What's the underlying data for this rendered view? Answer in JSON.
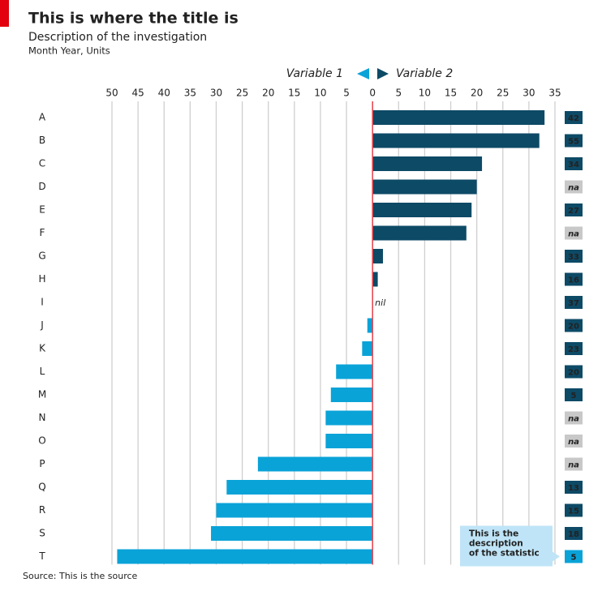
{
  "chart_data": {
    "type": "diverging-bar",
    "title": "This is where the title is",
    "subtitle": "Description of the investigation",
    "units": "Month Year, Units",
    "source": "Source: This is the source",
    "categories": [
      "A",
      "B",
      "C",
      "D",
      "E",
      "F",
      "G",
      "H",
      "I",
      "J",
      "K",
      "L",
      "M",
      "N",
      "O",
      "P",
      "Q",
      "R",
      "S",
      "T"
    ],
    "series": [
      {
        "name": "Variable 1",
        "color": "#0aa3d8",
        "values": [
          null,
          null,
          null,
          null,
          null,
          null,
          null,
          null,
          null,
          -1,
          -2,
          -7,
          -8,
          -9,
          -9,
          -22,
          -28,
          -30,
          -31,
          -49
        ]
      },
      {
        "name": "Variable 2",
        "color": "#0d4a66",
        "values": [
          33,
          32,
          21,
          20,
          19,
          18,
          2,
          1,
          0,
          null,
          null,
          null,
          null,
          null,
          null,
          null,
          null,
          null,
          null,
          null
        ],
        "value_labels": [
          null,
          null,
          null,
          null,
          null,
          null,
          null,
          null,
          "nil",
          null,
          null,
          null,
          null,
          null,
          null,
          null,
          null,
          null,
          null,
          null
        ]
      }
    ],
    "xlim": [
      -50,
      35
    ],
    "xticks": [
      {
        "value": -50,
        "label": "50"
      },
      {
        "value": -45,
        "label": "45"
      },
      {
        "value": -40,
        "label": "40"
      },
      {
        "value": -35,
        "label": "35"
      },
      {
        "value": -30,
        "label": "30"
      },
      {
        "value": -25,
        "label": "25"
      },
      {
        "value": -20,
        "label": "20"
      },
      {
        "value": -15,
        "label": "15"
      },
      {
        "value": -10,
        "label": "10"
      },
      {
        "value": -5,
        "label": "5"
      },
      0,
      5,
      10,
      15,
      20,
      25,
      30,
      35
    ],
    "grid": true,
    "zero_line_color": "#e8404a",
    "stats": {
      "values": [
        42,
        55,
        34,
        "na",
        27,
        "na",
        33,
        16,
        37,
        20,
        23,
        20,
        5,
        "na",
        "na",
        "na",
        13,
        15,
        18,
        5
      ],
      "color": "#0d4a66",
      "na_color": "#c8c8c8",
      "highlight_color": "#0aa3d8"
    },
    "annotation": {
      "lines": [
        "This is the",
        "description",
        "of the statistic"
      ],
      "category": "T"
    }
  }
}
